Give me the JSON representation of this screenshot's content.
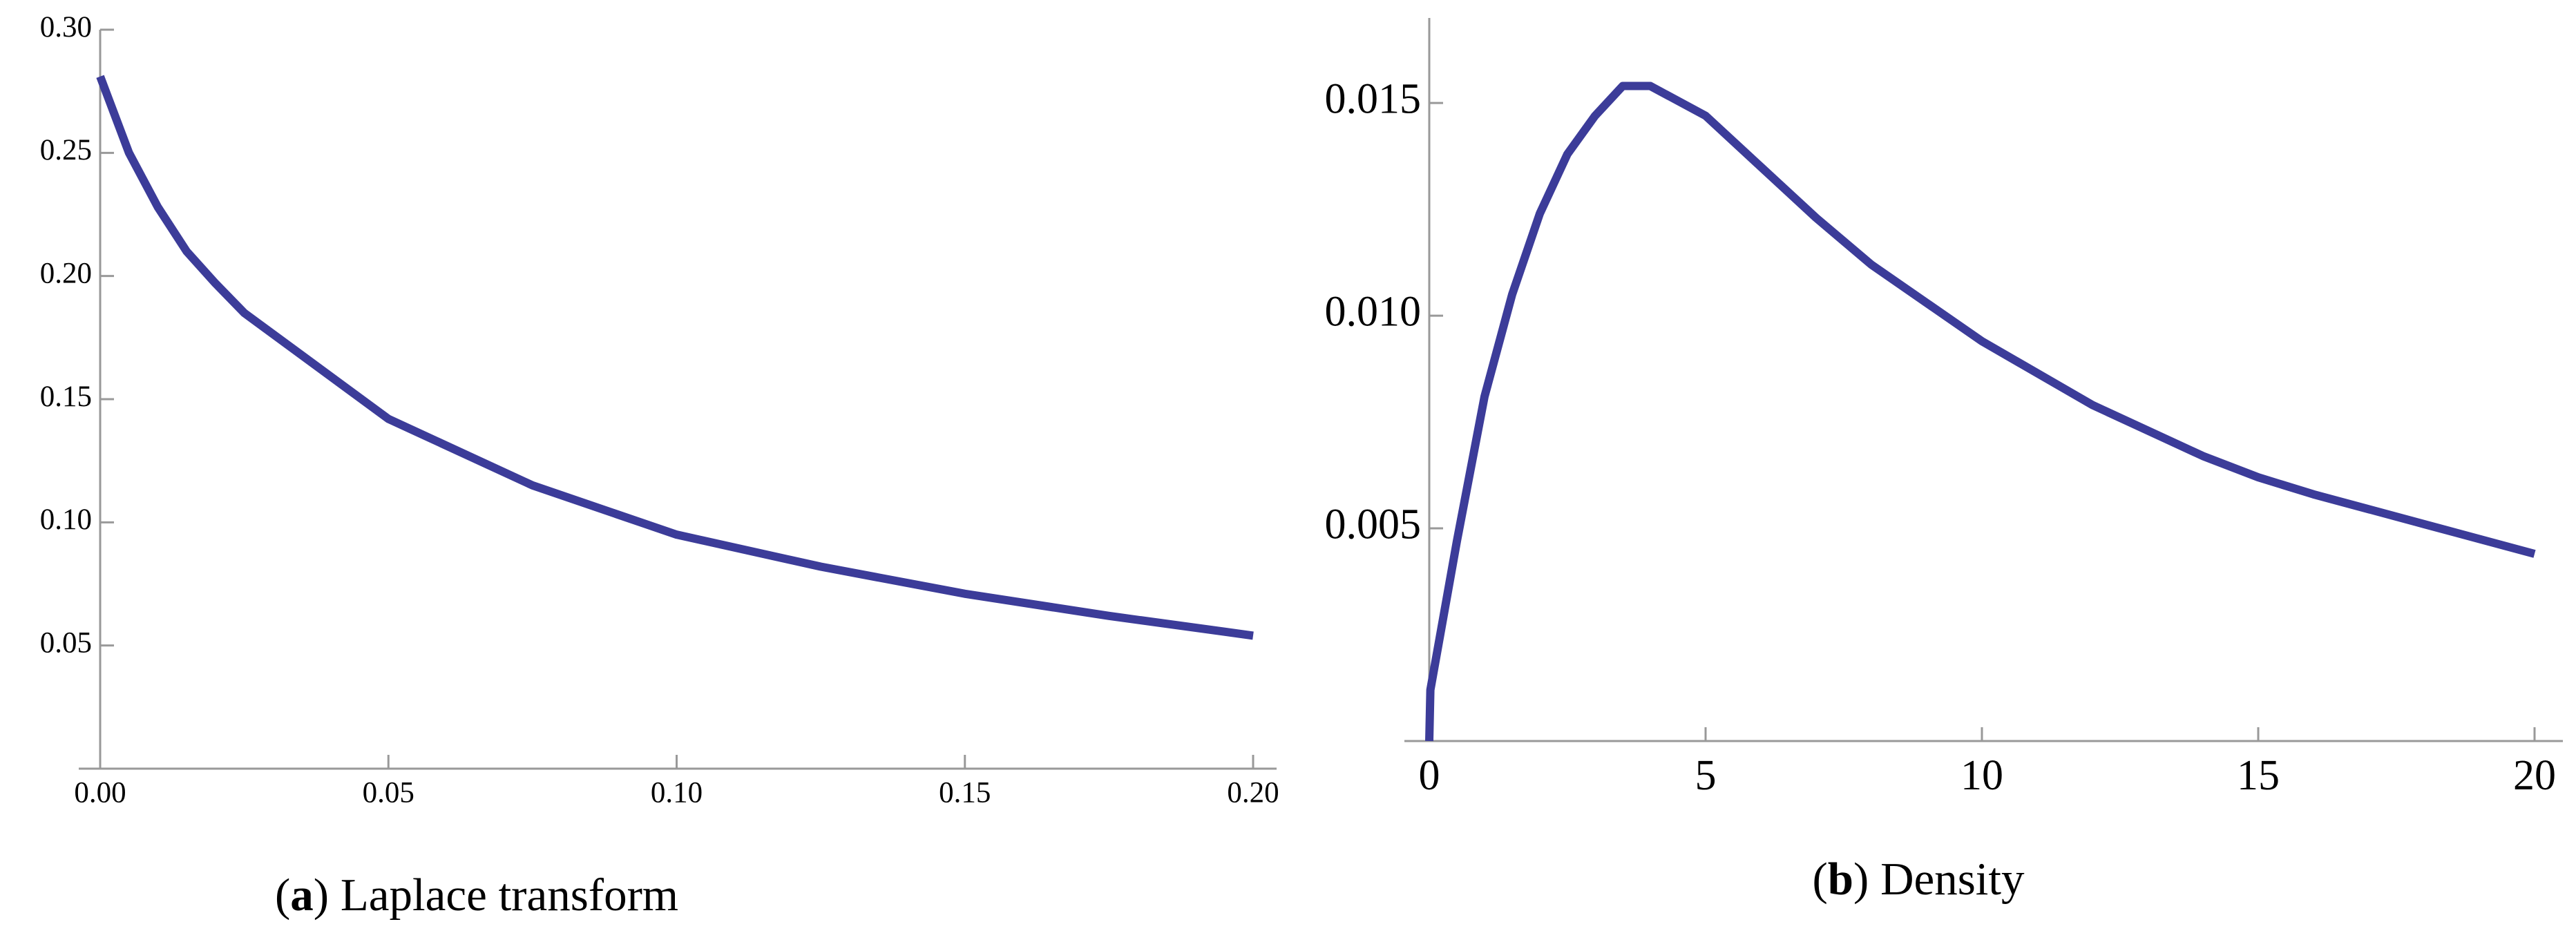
{
  "chart_data": [
    {
      "type": "line",
      "caption": [
        "(",
        "a",
        ") Laplace transform"
      ],
      "x": [
        0,
        0.005,
        0.01,
        0.015,
        0.02,
        0.025,
        0.05,
        0.075,
        0.1,
        0.125,
        0.15,
        0.175,
        0.2
      ],
      "series": [
        {
          "color": "#3c3c99",
          "values": [
            0.281,
            0.25,
            0.228,
            0.21,
            0.197,
            0.185,
            0.142,
            0.115,
            0.095,
            0.082,
            0.071,
            0.062,
            0.054
          ]
        }
      ],
      "xlim": [
        0,
        0.2
      ],
      "ylim": [
        0,
        0.3
      ],
      "xticks": [
        {
          "value": 0,
          "label": "0.00"
        },
        0.05,
        {
          "value": 0.1,
          "label": "0.10"
        },
        0.15,
        {
          "value": 0.2,
          "label": "0.20"
        }
      ],
      "yticks": [
        0.05,
        {
          "value": 0.1,
          "label": "0.10"
        },
        0.15,
        {
          "value": 0.2,
          "label": "0.20"
        },
        0.25,
        {
          "value": 0.3,
          "label": "0.30"
        }
      ]
    },
    {
      "type": "line",
      "caption": [
        "(",
        "b",
        ") Density"
      ],
      "x": [
        0,
        0.02,
        0.5,
        1,
        1.5,
        2,
        2.5,
        3,
        3.5,
        4,
        5,
        6,
        7,
        8,
        10,
        12,
        14,
        15,
        16,
        18,
        20
      ],
      "series": [
        {
          "color": "#3c3c99",
          "values": [
            0,
            0.0012,
            0.0047,
            0.0081,
            0.0105,
            0.0124,
            0.0138,
            0.0147,
            0.0154,
            0.0154,
            0.0147,
            0.0135,
            0.0123,
            0.0112,
            0.0094,
            0.0079,
            0.0067,
            0.0062,
            0.0058,
            0.0051,
            0.0044
          ]
        }
      ],
      "xlim": [
        0,
        20
      ],
      "ylim": [
        0,
        0.017
      ],
      "xticks": [
        0,
        5,
        10,
        15,
        20
      ],
      "yticks": [
        0.005,
        {
          "value": 0.01,
          "label": "0.010"
        },
        0.015
      ]
    }
  ]
}
